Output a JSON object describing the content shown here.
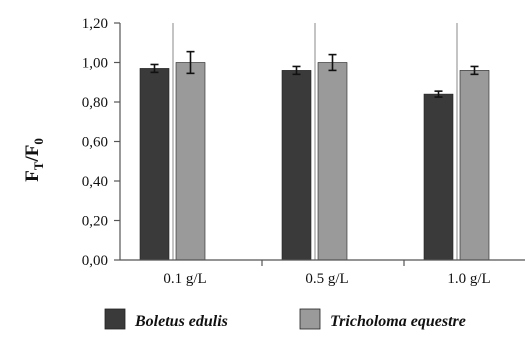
{
  "chart_data": {
    "type": "bar",
    "ylabel": "FT/F0",
    "ylabel_parts": {
      "main1": "F",
      "sub1": "T",
      "slash": "/",
      "main2": "F",
      "sub2": "0"
    },
    "categories": [
      "0.1 g/L",
      "0.5 g/L",
      "1.0 g/L"
    ],
    "series": [
      {
        "name": "Boletus edulis",
        "values": [
          0.97,
          0.96,
          0.84
        ],
        "errors": [
          0.02,
          0.02,
          0.015
        ],
        "color": "#3a3a3a"
      },
      {
        "name": "Tricholoma equestre",
        "values": [
          1.0,
          1.0,
          0.96
        ],
        "errors": [
          0.055,
          0.04,
          0.02
        ],
        "color": "#9a9a9a"
      }
    ],
    "ylim": [
      0,
      1.2
    ],
    "yticks": [
      "0,00",
      "0,20",
      "0,40",
      "0,60",
      "0,80",
      "1,00",
      "1,20"
    ],
    "legend_position": "bottom",
    "grid": false
  }
}
